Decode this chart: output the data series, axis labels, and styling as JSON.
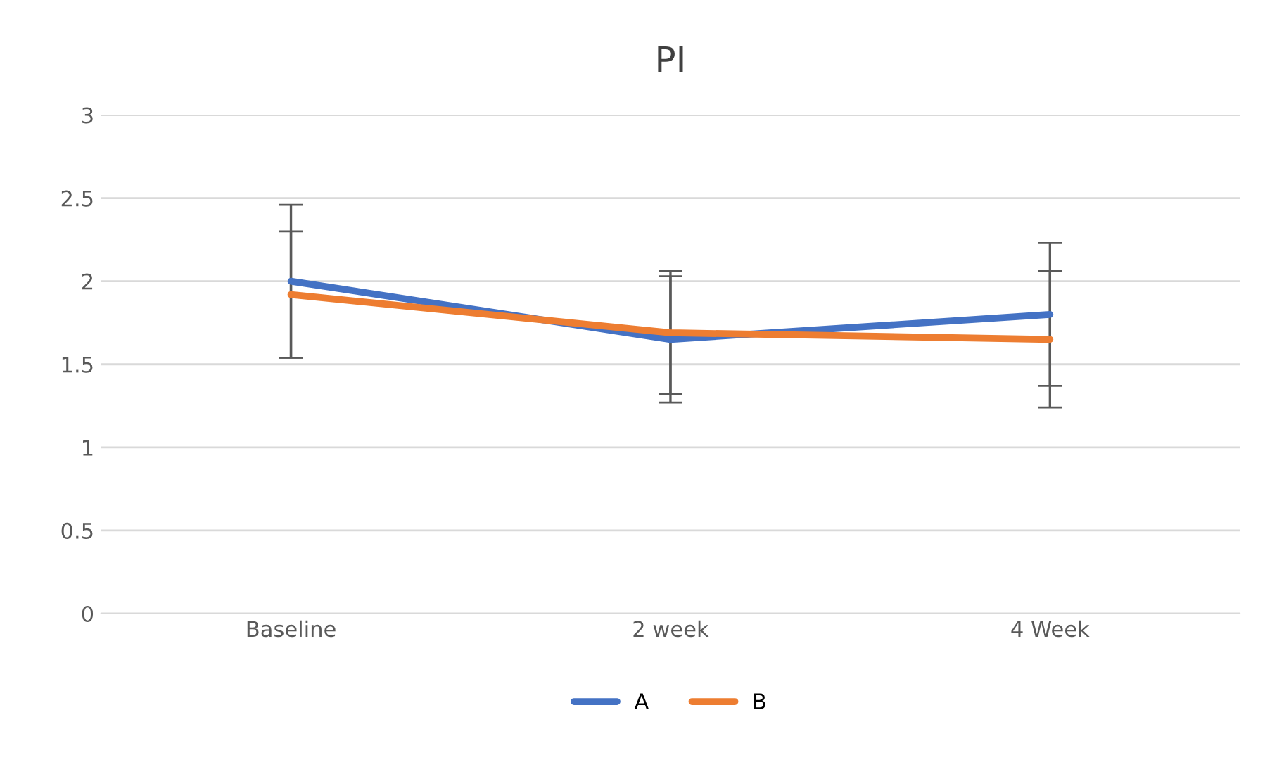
{
  "chart_data": {
    "type": "line",
    "title": "PI",
    "categories": [
      "Baseline",
      "2 week",
      "4 Week"
    ],
    "series": [
      {
        "name": "A",
        "color": "#4472c4",
        "values": [
          2.0,
          1.65,
          1.8
        ],
        "errors": [
          [
            1.54,
            2.46
          ],
          [
            1.27,
            2.03
          ],
          [
            1.37,
            2.23
          ]
        ]
      },
      {
        "name": "B",
        "color": "#ed7d31",
        "values": [
          1.92,
          1.69,
          1.65
        ],
        "errors": [
          [
            1.54,
            2.3
          ],
          [
            1.32,
            2.06
          ],
          [
            1.24,
            2.06
          ]
        ]
      }
    ],
    "ylim": [
      0,
      3
    ],
    "yticks": [
      0,
      0.5,
      1,
      1.5,
      2,
      2.5,
      3
    ],
    "grid": "y",
    "legend": "bottom",
    "marker": "none",
    "line_style": "solid"
  }
}
